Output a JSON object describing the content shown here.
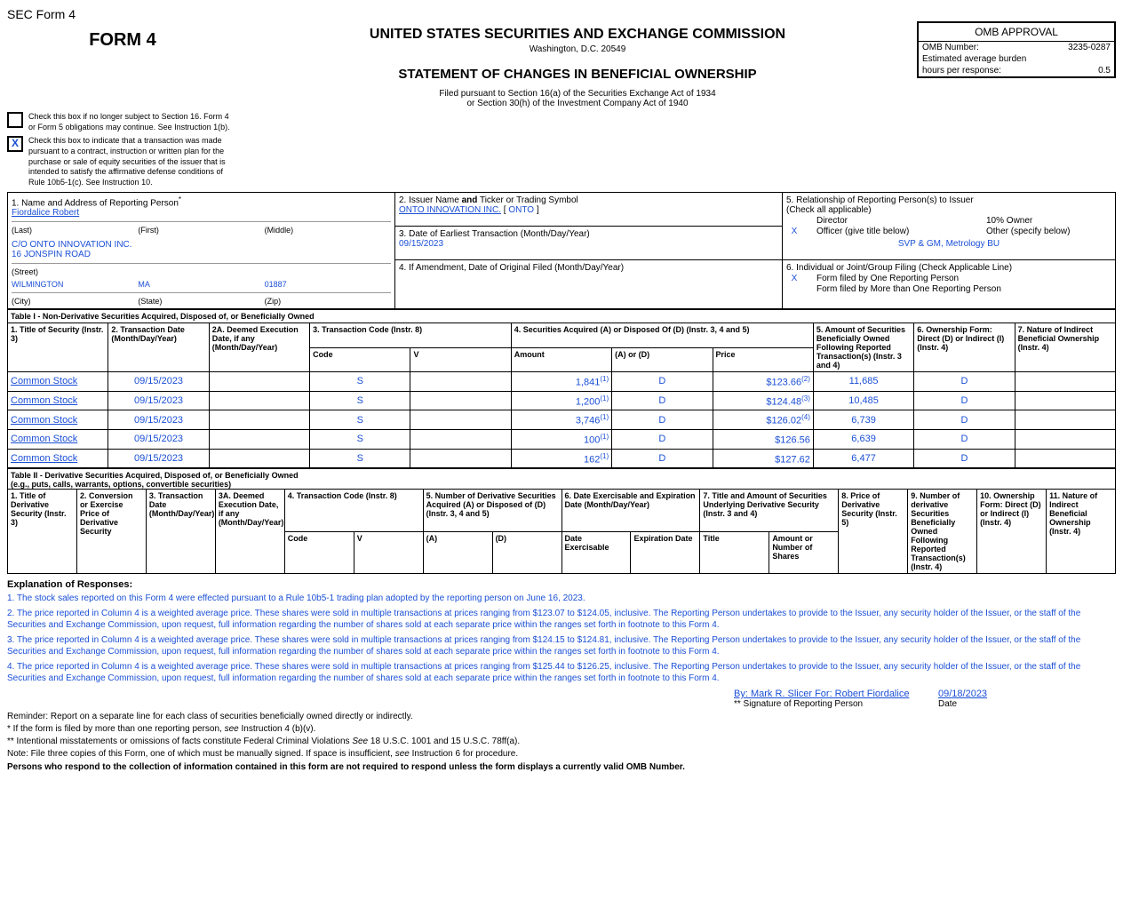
{
  "header": {
    "sec_form_label": "SEC Form 4",
    "form_title": "FORM 4",
    "sec_title": "UNITED STATES SECURITIES AND EXCHANGE COMMISSION",
    "sec_location": "Washington, D.C. 20549",
    "statement_title": "STATEMENT OF CHANGES IN BENEFICIAL OWNERSHIP",
    "filed_line1": "Filed pursuant to Section 16(a) of the Securities Exchange Act of 1934",
    "filed_line2": "or Section 30(h) of the Investment Company Act of 1940"
  },
  "omb": {
    "title": "OMB APPROVAL",
    "number_label": "OMB Number:",
    "number_value": "3235-0287",
    "burden_label": "Estimated average burden",
    "hours_label": "hours per response:",
    "hours_value": "0.5"
  },
  "checkboxes": {
    "box1_text": "Check this box if no longer subject to Section 16. Form 4 or Form 5 obligations may continue. See Instruction 1(b).",
    "box2_text": "Check this box to indicate that a transaction was made pursuant to a contract, instruction or written plan for the purchase or sale of equity securities of the issuer that is intended to satisfy the affirmative defense conditions of Rule 10b5-1(c). See Instruction 10.",
    "box2_mark": "X"
  },
  "box1": {
    "label": "1. Name and Address of Reporting Person",
    "name": "Fiordalice Robert",
    "last": "(Last)",
    "first": "(First)",
    "middle": "(Middle)",
    "line1": "C/O ONTO INNOVATION INC.",
    "line2": "16 JONSPIN ROAD",
    "street": "(Street)",
    "city": "WILMINGTON",
    "state": "MA",
    "zip": "01887",
    "city_l": "(City)",
    "state_l": "(State)",
    "zip_l": "(Zip)"
  },
  "box2": {
    "label_a": "2. Issuer Name ",
    "label_b": "and",
    "label_c": " Ticker or Trading Symbol",
    "issuer": "ONTO INNOVATION INC.",
    "ticker": "ONTO"
  },
  "box3": {
    "label": "3. Date of Earliest Transaction (Month/Day/Year)",
    "date": "09/15/2023"
  },
  "box4": {
    "label": "4. If Amendment, Date of Original Filed (Month/Day/Year)"
  },
  "box5": {
    "label": "5. Relationship of Reporting Person(s) to Issuer",
    "sub": "(Check all applicable)",
    "director": "Director",
    "ten_owner": "10% Owner",
    "officer": "Officer (give title below)",
    "other": "Other (specify below)",
    "officer_x": "X",
    "officer_title": "SVP & GM, Metrology BU"
  },
  "box6": {
    "label": "6. Individual or Joint/Group Filing (Check Applicable Line)",
    "one": "Form filed by One Reporting Person",
    "more": "Form filed by More than One Reporting Person",
    "one_x": "X"
  },
  "table1": {
    "title": "Table I - Non-Derivative Securities Acquired, Disposed of, or Beneficially Owned",
    "h1": "1. Title of Security (Instr. 3)",
    "h2": "2. Transaction Date (Month/Day/Year)",
    "h2a": "2A. Deemed Execution Date, if any (Month/Day/Year)",
    "h3": "3. Transaction Code (Instr. 8)",
    "h4": "4. Securities Acquired (A) or Disposed Of (D) (Instr. 3, 4 and 5)",
    "h5": "5. Amount of Securities Beneficially Owned Following Reported Transaction(s) (Instr. 3 and 4)",
    "h6": "6. Ownership Form: Direct (D) or Indirect (I) (Instr. 4)",
    "h7": "7. Nature of Indirect Beneficial Ownership (Instr. 4)",
    "sub_code": "Code",
    "sub_v": "V",
    "sub_amount": "Amount",
    "sub_ad": "(A) or (D)",
    "sub_price": "Price",
    "rows": [
      {
        "title": "Common Stock",
        "date": "09/15/2023",
        "code": "S",
        "amount": "1,841",
        "fn": "(1)",
        "ad": "D",
        "price": "$123.66",
        "pfn": "(2)",
        "owned": "11,685",
        "form": "D"
      },
      {
        "title": "Common Stock",
        "date": "09/15/2023",
        "code": "S",
        "amount": "1,200",
        "fn": "(1)",
        "ad": "D",
        "price": "$124.48",
        "pfn": "(3)",
        "owned": "10,485",
        "form": "D"
      },
      {
        "title": "Common Stock",
        "date": "09/15/2023",
        "code": "S",
        "amount": "3,746",
        "fn": "(1)",
        "ad": "D",
        "price": "$126.02",
        "pfn": "(4)",
        "owned": "6,739",
        "form": "D"
      },
      {
        "title": "Common Stock",
        "date": "09/15/2023",
        "code": "S",
        "amount": "100",
        "fn": "(1)",
        "ad": "D",
        "price": "$126.56",
        "pfn": "",
        "owned": "6,639",
        "form": "D"
      },
      {
        "title": "Common Stock",
        "date": "09/15/2023",
        "code": "S",
        "amount": "162",
        "fn": "(1)",
        "ad": "D",
        "price": "$127.62",
        "pfn": "",
        "owned": "6,477",
        "form": "D"
      }
    ]
  },
  "table2": {
    "title": "Table II - Derivative Securities Acquired, Disposed of, or Beneficially Owned",
    "subtitle": "(e.g., puts, calls, warrants, options, convertible securities)",
    "h1": "1. Title of Derivative Security (Instr. 3)",
    "h2": "2. Conversion or Exercise Price of Derivative Security",
    "h3": "3. Transaction Date (Month/Day/Year)",
    "h3a": "3A. Deemed Execution Date, if any (Month/Day/Year)",
    "h4": "4. Transaction Code (Instr. 8)",
    "h5": "5. Number of Derivative Securities Acquired (A) or Disposed of (D) (Instr. 3, 4 and 5)",
    "h6": "6. Date Exercisable and Expiration Date (Month/Day/Year)",
    "h7": "7. Title and Amount of Securities Underlying Derivative Security (Instr. 3 and 4)",
    "h8": "8. Price of Derivative Security (Instr. 5)",
    "h9": "9. Number of derivative Securities Beneficially Owned Following Reported Transaction(s) (Instr. 4)",
    "h10": "10. Ownership Form: Direct (D) or Indirect (I) (Instr. 4)",
    "h11": "11. Nature of Indirect Beneficial Ownership (Instr. 4)",
    "sub_code": "Code",
    "sub_v": "V",
    "sub_a": "(A)",
    "sub_d": "(D)",
    "sub_dex": "Date Exercisable",
    "sub_exp": "Expiration Date",
    "sub_title": "Title",
    "sub_shares": "Amount or Number of Shares"
  },
  "explanation": {
    "title": "Explanation of Responses:",
    "items": [
      "1. The stock sales reported on this Form 4 were effected pursuant to a Rule 10b5-1 trading plan adopted by the reporting person on June 16, 2023.",
      "2. The price reported in Column 4 is a weighted average price. These shares were sold in multiple transactions at prices ranging from $123.07 to $124.05, inclusive. The Reporting Person undertakes to provide to the Issuer, any security holder of the Issuer, or the staff of the Securities and Exchange Commission, upon request, full information regarding the number of shares sold at each separate price within the ranges set forth in footnote to this Form 4.",
      "3. The price reported in Column 4 is a weighted average price. These shares were sold in multiple transactions at prices ranging from $124.15 to $124.81, inclusive. The Reporting Person undertakes to provide to the Issuer, any security holder of the Issuer, or the staff of the Securities and Exchange Commission, upon request, full information regarding the number of shares sold at each separate price within the ranges set forth in footnote to this Form 4.",
      "4. The price reported in Column 4 is a weighted average price. These shares were sold in multiple transactions at prices ranging from $125.44 to $126.25, inclusive. The Reporting Person undertakes to provide to the Issuer, any security holder of the Issuer, or the staff of the Securities and Exchange Commission, upon request, full information regarding the number of shares sold at each separate price within the ranges set forth in footnote to this Form 4."
    ]
  },
  "signature": {
    "name": "By: Mark R. Slicer For: Robert Fiordalice",
    "date": "09/18/2023",
    "name_label": "** Signature of Reporting Person",
    "date_label": "Date"
  },
  "footer": {
    "reminder": "Reminder: Report on a separate line for each class of securities beneficially owned directly or indirectly.",
    "note1_a": "* If the form is filed by more than one reporting person, ",
    "note1_b": "see",
    "note1_c": " Instruction 4 (b)(v).",
    "note2_a": "** Intentional misstatements or omissions of facts constitute Federal Criminal Violations ",
    "note2_b": "See",
    "note2_c": " 18 U.S.C. 1001 and 15 U.S.C. 78ff(a).",
    "note3_a": "Note: File three copies of this Form, one of which must be manually signed. If space is insufficient, ",
    "note3_b": "see",
    "note3_c": " Instruction 6 for procedure.",
    "bold": "Persons who respond to the collection of information contained in this form are not required to respond unless the form displays a currently valid OMB Number."
  }
}
